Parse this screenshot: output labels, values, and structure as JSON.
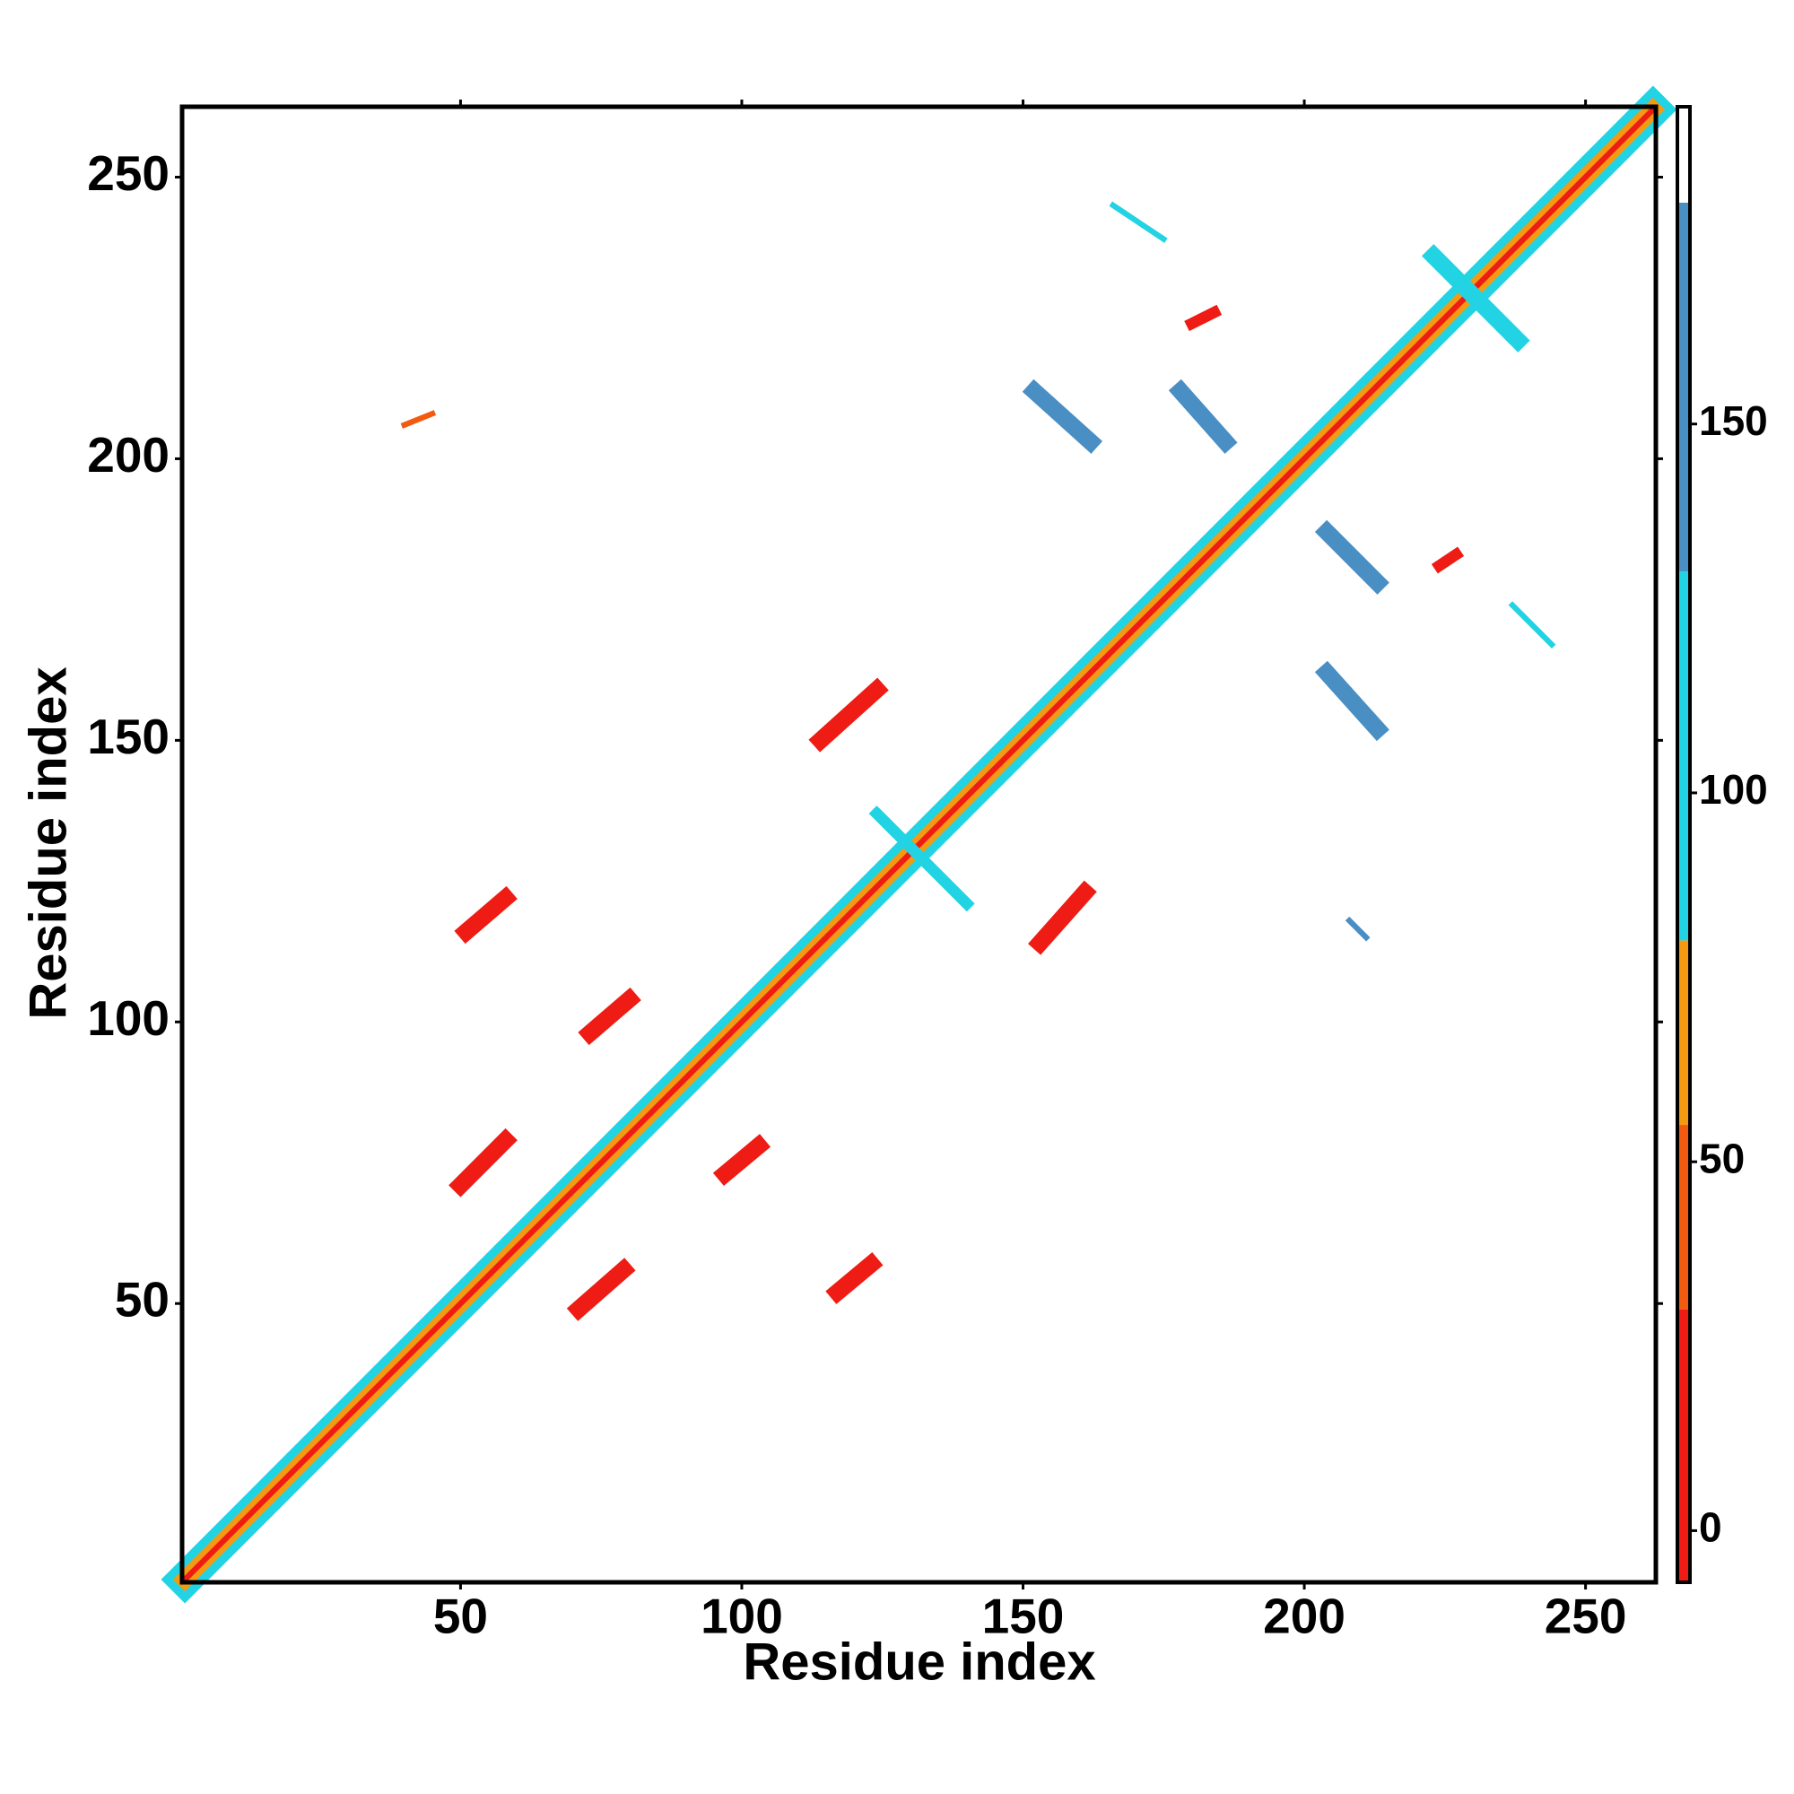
{
  "chart_data": {
    "type": "contact-map",
    "x_label": "Residue index",
    "y_label": "Residue index",
    "xlim": [
      0.5,
      262.5
    ],
    "ylim": [
      0.5,
      262.5
    ],
    "xticks": [
      50,
      100,
      150,
      200,
      250
    ],
    "yticks": [
      50,
      100,
      150,
      200,
      250
    ],
    "colorbar": {
      "lim": [
        -7,
        193
      ],
      "ticks": [
        0,
        50,
        100,
        150
      ],
      "edges": [
        -7,
        30,
        55,
        80,
        130,
        180,
        193
      ],
      "colors": [
        "#ee1c14",
        "#f25a10",
        "#f39a12",
        "#22d3e4",
        "#4a8fc4",
        "#ffffff"
      ]
    },
    "features": [
      {
        "x0": 1,
        "y0": 1,
        "x1": 262,
        "y1": 262,
        "width": 6,
        "value": 100
      },
      {
        "x0": 1,
        "y0": 1,
        "x1": 262,
        "y1": 262,
        "width": 3,
        "value": 60
      },
      {
        "x0": 1,
        "y0": 1,
        "x1": 262,
        "y1": 262,
        "width": 1,
        "value": 10
      },
      {
        "x0": 50,
        "y0": 71,
        "x1": 58,
        "y1": 79,
        "width": 3,
        "value": 10
      },
      {
        "x0": 71,
        "y0": 49,
        "x1": 79,
        "y1": 56,
        "width": 3,
        "value": 10
      },
      {
        "x0": 73,
        "y0": 98,
        "x1": 80,
        "y1": 104,
        "width": 3,
        "value": 10
      },
      {
        "x0": 51,
        "y0": 116,
        "x1": 58,
        "y1": 122,
        "width": 3,
        "value": 10
      },
      {
        "x0": 97,
        "y0": 73,
        "x1": 103,
        "y1": 78,
        "width": 3,
        "value": 10
      },
      {
        "x0": 117,
        "y0": 52,
        "x1": 123,
        "y1": 57,
        "width": 3,
        "value": 10
      },
      {
        "x0": 114,
        "y0": 150,
        "x1": 124,
        "y1": 159,
        "width": 3,
        "value": 10
      },
      {
        "x0": 153,
        "y0": 114,
        "x1": 161,
        "y1": 123,
        "width": 3,
        "value": 10
      },
      {
        "x0": 152,
        "y0": 212,
        "x1": 162,
        "y1": 203,
        "width": 3,
        "value": 160
      },
      {
        "x0": 178,
        "y0": 212,
        "x1": 186,
        "y1": 203,
        "width": 3,
        "value": 165
      },
      {
        "x0": 204,
        "y0": 187,
        "x1": 213,
        "y1": 178,
        "width": 3,
        "value": 160
      },
      {
        "x0": 204,
        "y0": 162,
        "x1": 213,
        "y1": 152,
        "width": 3,
        "value": 155
      },
      {
        "x0": 223,
        "y0": 236,
        "x1": 238,
        "y1": 221,
        "width": 3,
        "value": 110
      },
      {
        "x0": 124,
        "y0": 137,
        "x1": 140,
        "y1": 121,
        "width": 2,
        "value": 100
      },
      {
        "x0": 180,
        "y0": 224,
        "x1": 184,
        "y1": 226,
        "width": 2,
        "value": 5
      },
      {
        "x0": 224,
        "y0": 181,
        "x1": 227,
        "y1": 183,
        "width": 2,
        "value": 5
      },
      {
        "x0": 40,
        "y0": 206,
        "x1": 45,
        "y1": 208,
        "width": 1,
        "value": 45
      },
      {
        "x0": 208,
        "y0": 118,
        "x1": 211,
        "y1": 115,
        "width": 1,
        "value": 140
      },
      {
        "x0": 166,
        "y0": 245,
        "x1": 175,
        "y1": 239,
        "width": 1,
        "value": 110
      },
      {
        "x0": 237,
        "y0": 174,
        "x1": 244,
        "y1": 167,
        "width": 1,
        "value": 110
      }
    ]
  }
}
